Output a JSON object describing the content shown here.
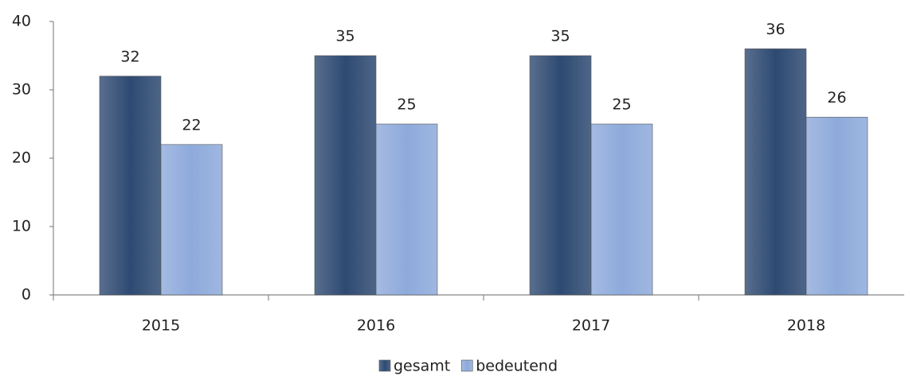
{
  "chart_data": {
    "type": "bar",
    "categories": [
      "2015",
      "2016",
      "2017",
      "2018"
    ],
    "series": [
      {
        "name": "gesamt",
        "color": "#2e4a72",
        "values": [
          32,
          35,
          35,
          36
        ]
      },
      {
        "name": "bedeutend",
        "color": "#8eaadb",
        "values": [
          22,
          25,
          25,
          26
        ]
      }
    ],
    "ylim": [
      0,
      40
    ],
    "yticks": [
      0,
      10,
      20,
      30,
      40
    ],
    "grid": false,
    "legend": "bottom"
  }
}
